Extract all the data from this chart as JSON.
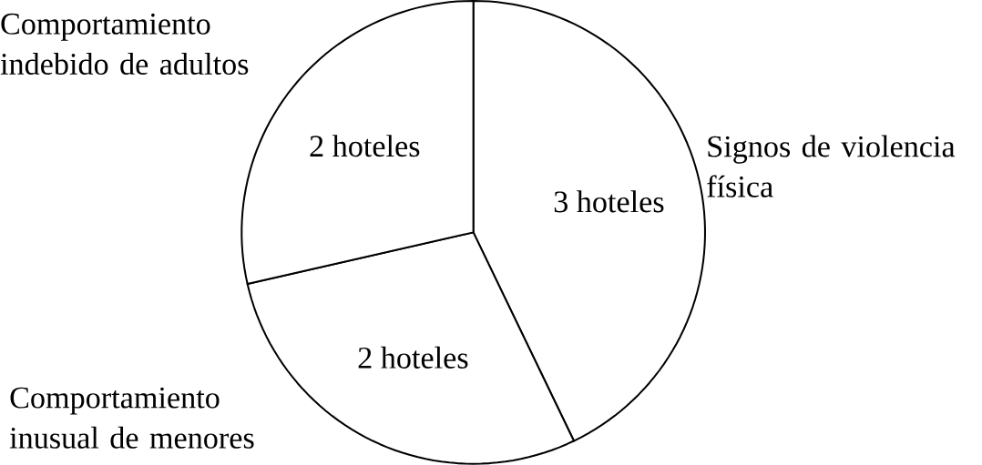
{
  "chart_data": {
    "type": "pie",
    "categories": [
      "Signos de violencia física",
      "Comportamiento inusual de menores",
      "Comportamiento indebido de adultos"
    ],
    "values": [
      3,
      2,
      2
    ],
    "colors": [
      "#ffffff",
      "#ffffff",
      "#ffffff"
    ],
    "value_labels": [
      "3 hoteles",
      "2 hoteles",
      "2 hoteles"
    ]
  }
}
